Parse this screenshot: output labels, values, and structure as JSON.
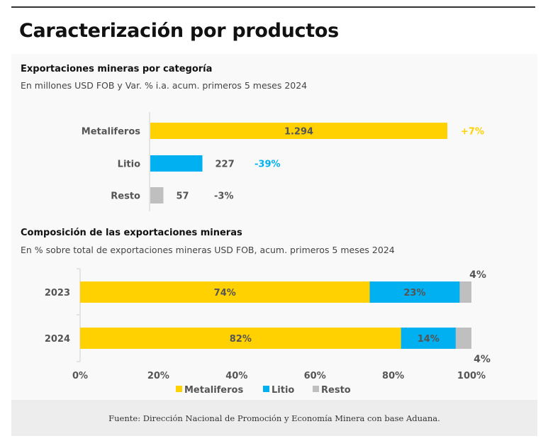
{
  "page": {
    "title": "Caracterización por productos",
    "footer": "Fuente: Dirección Nacional de Promoción y Economía Minera con base Aduana."
  },
  "colors": {
    "metaliferos": "#FFD100",
    "litio": "#00B0F0",
    "resto": "#BFBFBF",
    "label": "#555555"
  },
  "chart_data": [
    {
      "type": "bar",
      "orientation": "horizontal",
      "title": "Exportaciones mineras por categoría",
      "subtitle": "En millones USD FOB y Var. % i.a. acum. primeros 5 meses 2024",
      "categories": [
        "Metaliferos",
        "Litio",
        "Resto"
      ],
      "values": [
        1294,
        227,
        57
      ],
      "value_labels": [
        "1.294",
        "227",
        "57"
      ],
      "variation_labels": [
        "+7%",
        "-39%",
        "-3%"
      ],
      "variation_colors": [
        "#FFD100",
        "#00B0F0",
        "#555555"
      ],
      "bar_colors": [
        "#FFD100",
        "#00B0F0",
        "#BFBFBF"
      ],
      "xlim": [
        0,
        1400
      ],
      "grid": false
    },
    {
      "type": "bar",
      "orientation": "horizontal",
      "stacked": true,
      "title": "Composición de las exportaciones mineras",
      "subtitle": "En % sobre total de exportaciones mineras USD FOB, acum. primeros 5 meses 2024",
      "categories": [
        "2023",
        "2024"
      ],
      "series": [
        {
          "name": "Metaliferos",
          "values": [
            74,
            82
          ],
          "labels": [
            "74%",
            "82%"
          ],
          "color": "#FFD100"
        },
        {
          "name": "Litio",
          "values": [
            23,
            14
          ],
          "labels": [
            "23%",
            "14%"
          ],
          "color": "#00B0F0"
        },
        {
          "name": "Resto",
          "values": [
            4,
            4
          ],
          "labels": [
            "4%",
            "4%"
          ],
          "color": "#BFBFBF"
        }
      ],
      "xticks": [
        "0%",
        "20%",
        "40%",
        "60%",
        "80%",
        "100%"
      ],
      "xlim": [
        0,
        100
      ],
      "legend": "bottom",
      "grid": false
    }
  ]
}
